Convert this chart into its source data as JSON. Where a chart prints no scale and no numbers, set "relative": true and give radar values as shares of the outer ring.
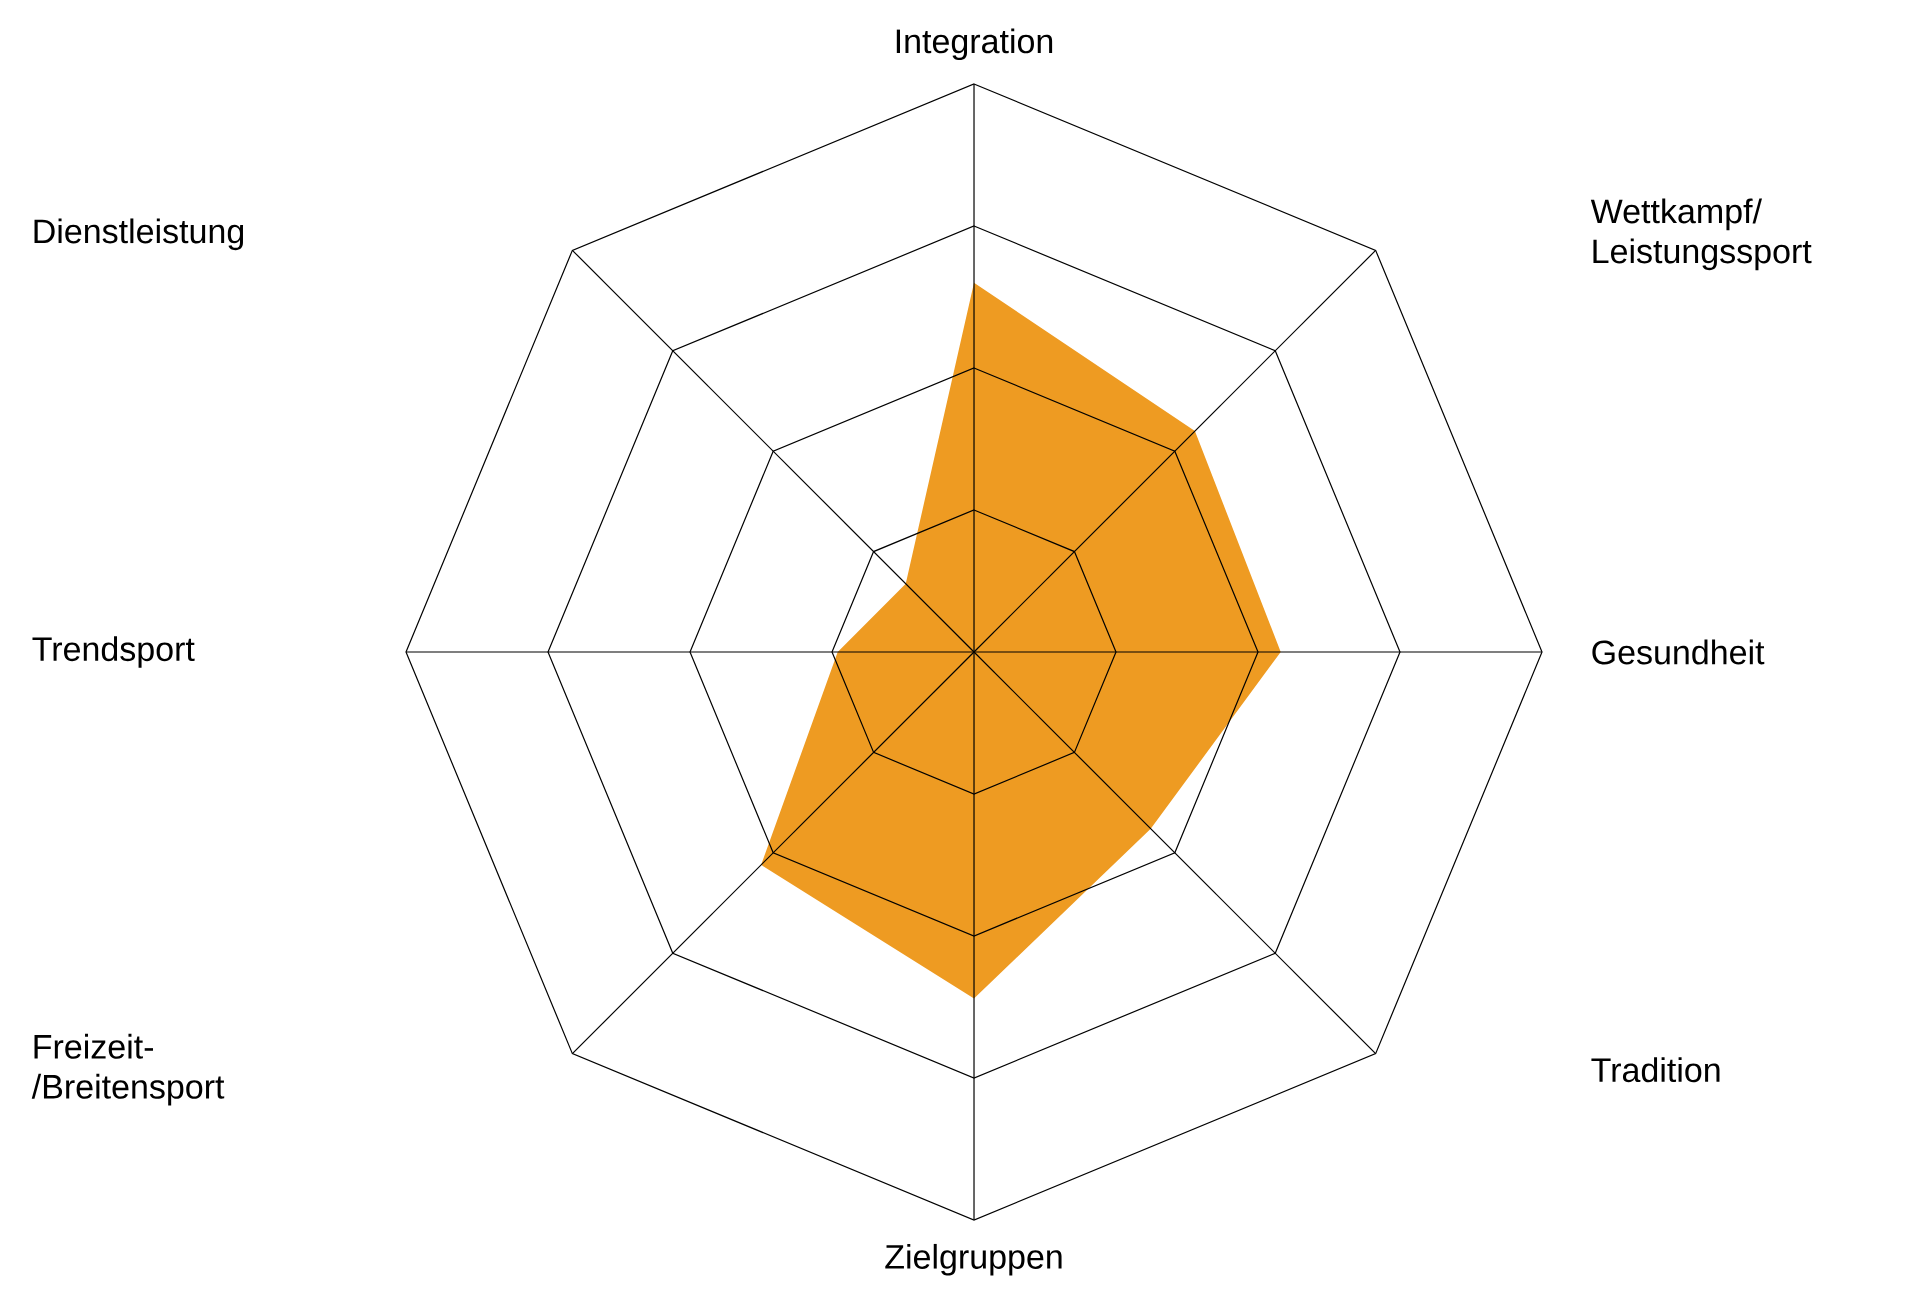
{
  "chart_data": {
    "type": "radar",
    "relative": true,
    "categories": [
      "Integration",
      "Wettkampf/ Leistungssport",
      "Gesundheit",
      "Tradition",
      "Zielgruppen",
      "Freizeit-/Breitensport",
      "Trendsport",
      "Dienstleistung"
    ],
    "series": [
      {
        "color": "#ee9b22",
        "values": [
          0.65,
          0.55,
          0.54,
          0.44,
          0.61,
          0.53,
          0.24,
          0.17
        ]
      }
    ]
  }
}
